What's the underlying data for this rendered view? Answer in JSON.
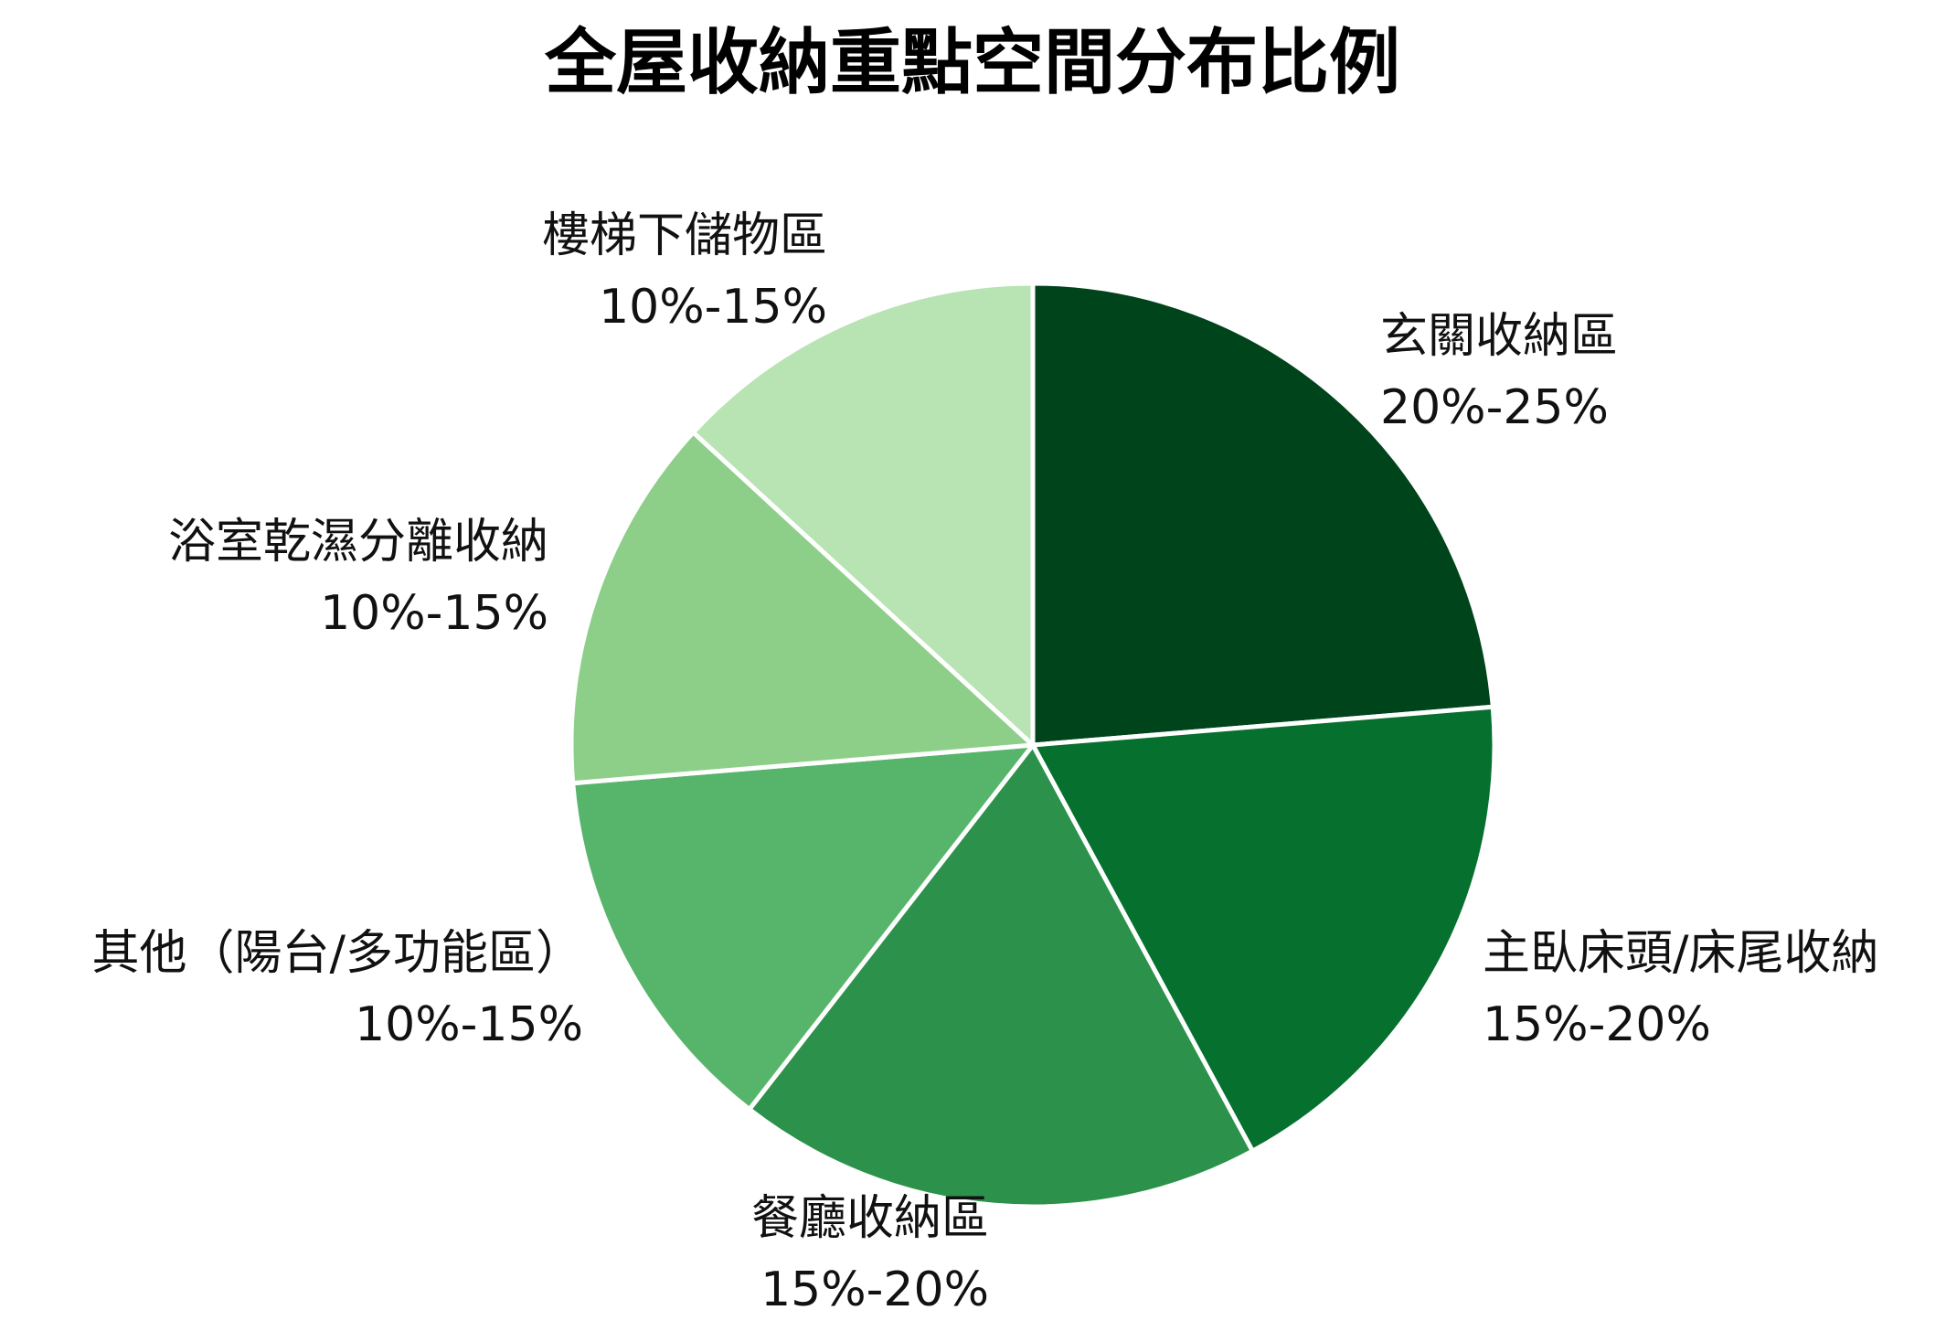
{
  "chart_data": {
    "type": "pie",
    "title": "全屋收納重點空間分布比例",
    "slices": [
      {
        "label": "玄關收納區",
        "range_text": "20%-25%",
        "value": 22.5,
        "color": "#00441b"
      },
      {
        "label": "主臥床頭/床尾收納",
        "range_text": "15%-20%",
        "value": 17.5,
        "color": "#06702e"
      },
      {
        "label": "餐廳收納區",
        "range_text": "15%-20%",
        "value": 17.5,
        "color": "#2c924b"
      },
      {
        "label": "其他（陽台/多功能區）",
        "range_text": "10%-15%",
        "value": 12.5,
        "color": "#56b56a"
      },
      {
        "label": "浴室乾濕分離收納",
        "range_text": "10%-15%",
        "value": 12.5,
        "color": "#8dcf88"
      },
      {
        "label": "樓梯下儲物區",
        "range_text": "10%-15%",
        "value": 12.5,
        "color": "#b8e3b2"
      }
    ],
    "start_angle": "12 o'clock",
    "direction": "clockwise",
    "slice_separator_color": "#ffffff",
    "legend": "none"
  }
}
